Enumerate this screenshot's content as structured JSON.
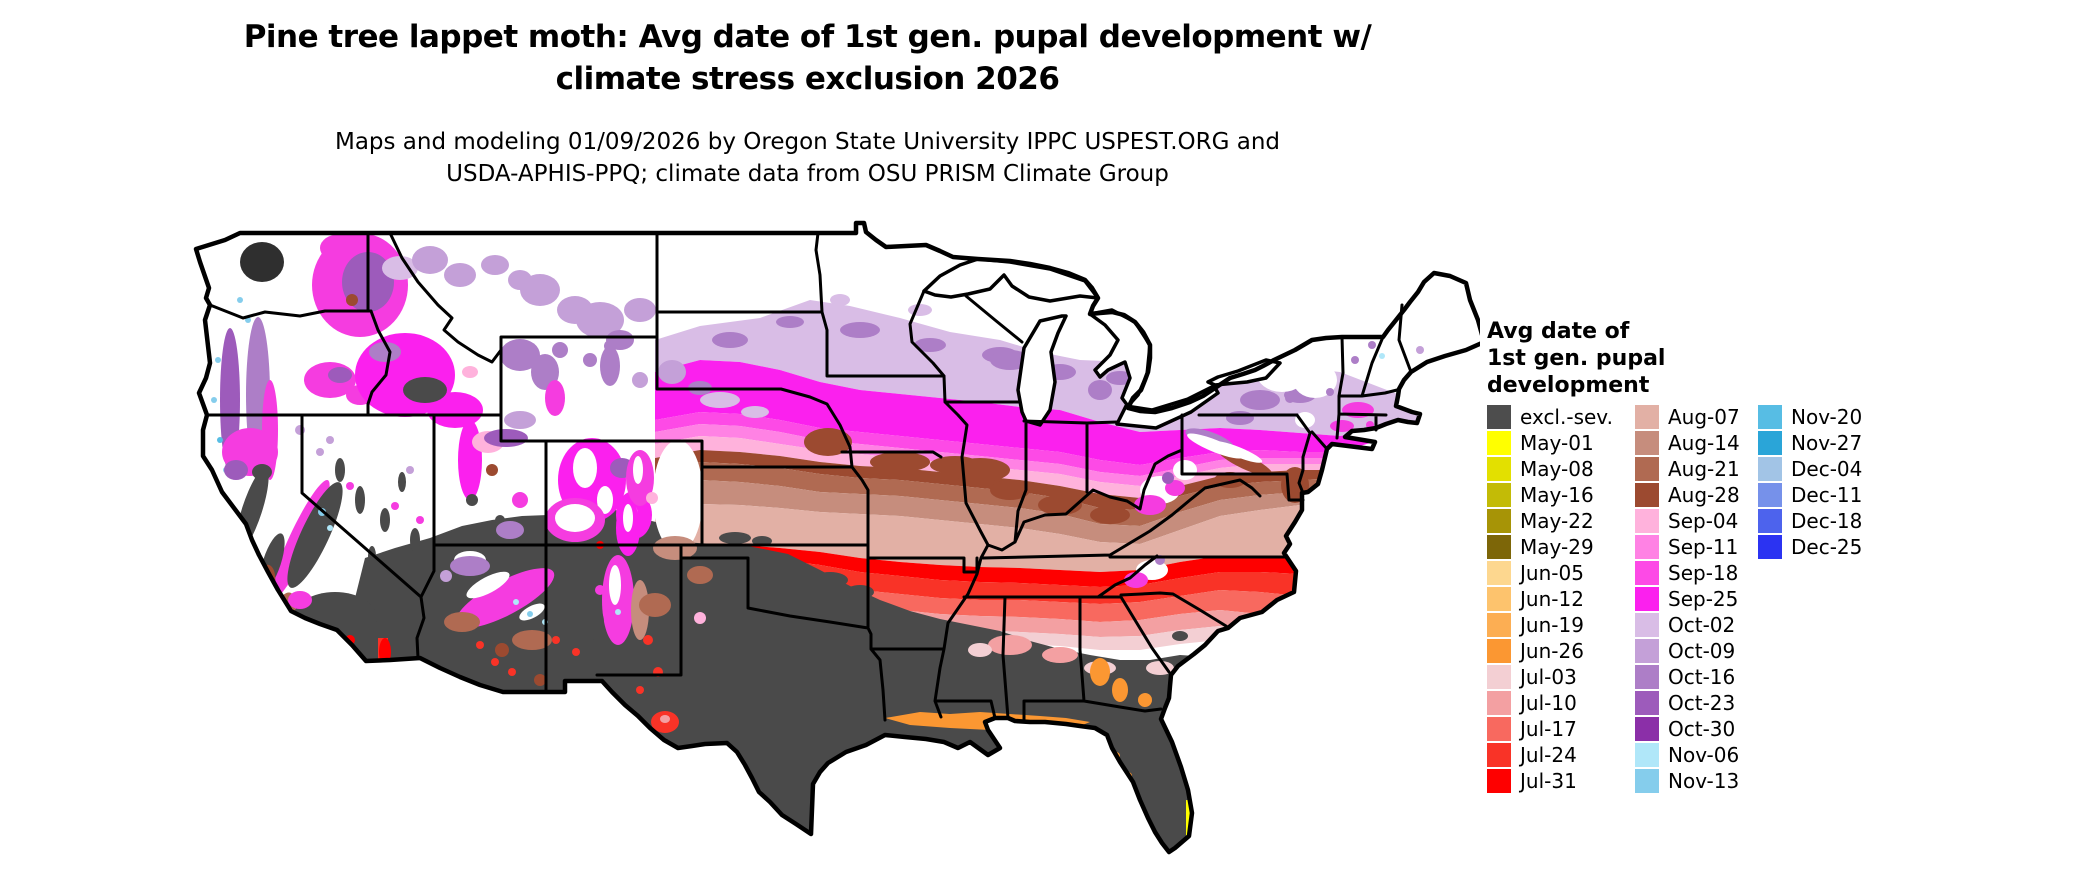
{
  "title": {
    "line1": "Pine tree lappet moth: Avg date of 1st gen. pupal development w/",
    "line2": "climate stress exclusion 2026"
  },
  "subtitle": {
    "line1": "Maps and modeling 01/09/2026 by Oregon State University IPPC USPEST.ORG and",
    "line2": "USDA-APHIS-PPQ; climate data from OSU PRISM Climate Group"
  },
  "map": {
    "region": "Contiguous United States",
    "kind": "raster choropleth of average date of first generation pupal development"
  },
  "legend": {
    "title_lines": [
      "Avg date of",
      "1st gen. pupal",
      "development"
    ],
    "columns": [
      [
        {
          "label": "excl.-sev.",
          "color": "#4d4d4d"
        },
        {
          "label": "May-01",
          "color": "#ffff00"
        },
        {
          "label": "May-08",
          "color": "#e3e000"
        },
        {
          "label": "May-16",
          "color": "#c3bb06"
        },
        {
          "label": "May-22",
          "color": "#a79406"
        },
        {
          "label": "May-29",
          "color": "#7d6608"
        },
        {
          "label": "Jun-05",
          "color": "#fdd78f"
        },
        {
          "label": "Jun-12",
          "color": "#fdc36d"
        },
        {
          "label": "Jun-19",
          "color": "#fcae53"
        },
        {
          "label": "Jun-26",
          "color": "#fb9732"
        },
        {
          "label": "Jul-03",
          "color": "#f3cfd3"
        },
        {
          "label": "Jul-10",
          "color": "#f3a0a2"
        },
        {
          "label": "Jul-17",
          "color": "#f8695f"
        },
        {
          "label": "Jul-24",
          "color": "#f93327"
        },
        {
          "label": "Jul-31",
          "color": "#fe0000"
        }
      ],
      [
        {
          "label": "Aug-07",
          "color": "#e2b0a5"
        },
        {
          "label": "Aug-14",
          "color": "#c68d7d"
        },
        {
          "label": "Aug-21",
          "color": "#b06a52"
        },
        {
          "label": "Aug-28",
          "color": "#9c4a30"
        },
        {
          "label": "Sep-04",
          "color": "#ffb2dc"
        },
        {
          "label": "Sep-11",
          "color": "#ff82e4"
        },
        {
          "label": "Sep-18",
          "color": "#fd4ae6"
        },
        {
          "label": "Sep-25",
          "color": "#fb20ee"
        },
        {
          "label": "Oct-02",
          "color": "#d9bde6"
        },
        {
          "label": "Oct-09",
          "color": "#c4a0d8"
        },
        {
          "label": "Oct-16",
          "color": "#ad7ec7"
        },
        {
          "label": "Oct-23",
          "color": "#9d5bbb"
        },
        {
          "label": "Oct-30",
          "color": "#8b2fa8"
        },
        {
          "label": "Nov-06",
          "color": "#b0e7f9"
        },
        {
          "label": "Nov-13",
          "color": "#85cdec"
        }
      ],
      [
        {
          "label": "Nov-20",
          "color": "#57bde4"
        },
        {
          "label": "Nov-27",
          "color": "#2aa5d8"
        },
        {
          "label": "Dec-04",
          "color": "#a2c4e6"
        },
        {
          "label": "Dec-11",
          "color": "#7691ea"
        },
        {
          "label": "Dec-18",
          "color": "#4d63ed"
        },
        {
          "label": "Dec-25",
          "color": "#2b33f2"
        }
      ]
    ]
  }
}
